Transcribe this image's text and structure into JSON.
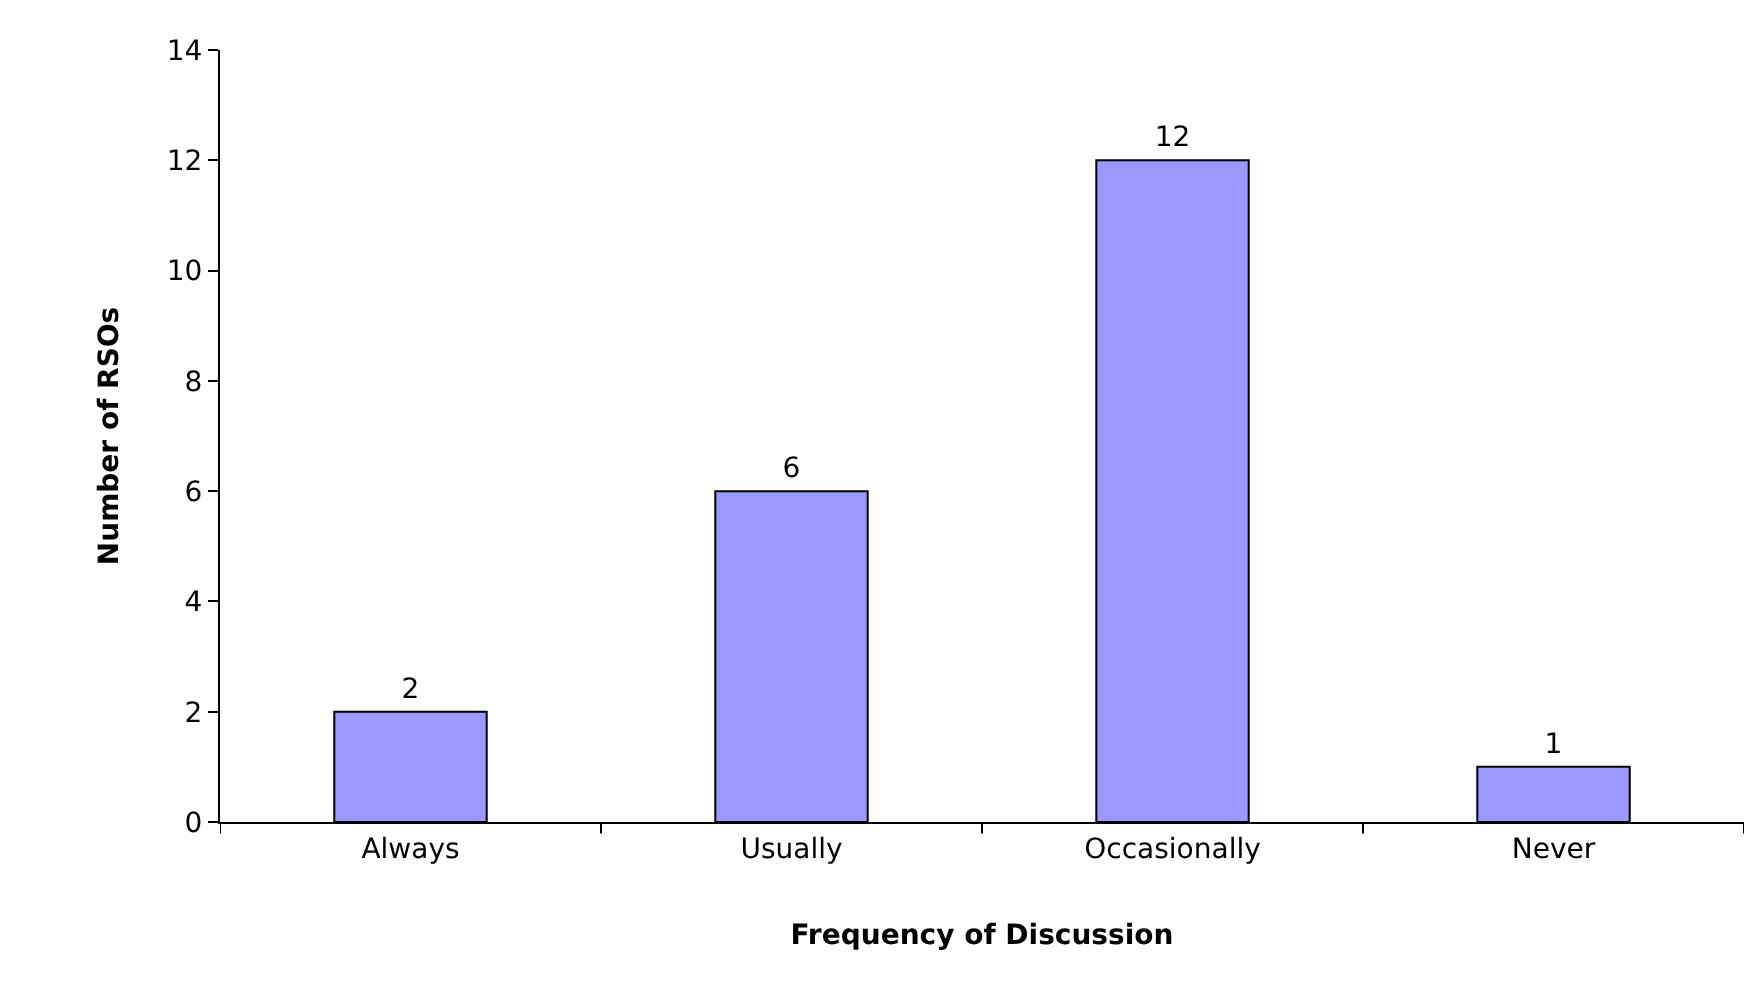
{
  "chart_data": {
    "type": "bar",
    "xlabel": "Frequency of Discussion",
    "ylabel": "Number of RSOs",
    "categories": [
      "Always",
      "Usually",
      "Occasionally",
      "Never"
    ],
    "values": [
      2,
      6,
      12,
      1
    ],
    "color": "#9999ff",
    "ylim": [
      0,
      14
    ],
    "yticks": [
      0,
      2,
      4,
      6,
      8,
      10,
      12,
      14
    ],
    "data_labels": true
  }
}
